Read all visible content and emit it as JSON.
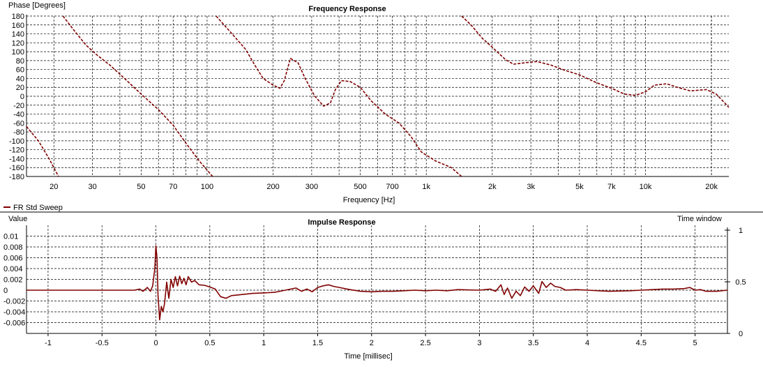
{
  "chart_data": [
    {
      "type": "line",
      "title": "Frequency Response",
      "xlabel": "Frequency [Hz]",
      "ylabel": "Phase [Degrees]",
      "xscale": "log",
      "xlim": [
        15,
        24000
      ],
      "ylim": [
        -180,
        180
      ],
      "grid": true,
      "legend": "bottom-left",
      "yticks": [
        180,
        160,
        140,
        120,
        100,
        80,
        60,
        40,
        20,
        0,
        -20,
        -40,
        -60,
        -80,
        -100,
        -120,
        -140,
        -160,
        -180
      ],
      "ytick_labels": [
        "180",
        "160",
        "140",
        "120",
        "100",
        "80",
        "60",
        "40",
        "20",
        "0",
        "-20",
        "-40",
        "-60",
        "-80",
        "-100",
        "-120",
        "-140",
        "-160",
        "-180"
      ],
      "xticks": [
        20,
        30,
        50,
        70,
        100,
        200,
        300,
        500,
        700,
        1000,
        2000,
        3000,
        5000,
        7000,
        10000,
        20000
      ],
      "xtick_labels": [
        "20",
        "30",
        "50",
        "70",
        "100",
        "200",
        "300",
        "500",
        "700",
        "1k",
        "2k",
        "3k",
        "5k",
        "7k",
        "10k",
        "20k"
      ],
      "series": [
        {
          "name": "FR Std Sweep",
          "color": "#800000",
          "style": "dashed",
          "segments": [
            [
              [
                15,
                -68
              ],
              [
                17,
                -100
              ],
              [
                19,
                -140
              ],
              [
                21,
                -180
              ]
            ],
            [
              [
                22,
                180
              ],
              [
                25,
                145
              ],
              [
                28,
                115
              ],
              [
                31,
                95
              ],
              [
                36,
                70
              ],
              [
                42,
                40
              ],
              [
                50,
                5
              ],
              [
                60,
                -30
              ],
              [
                70,
                -65
              ],
              [
                80,
                -105
              ],
              [
                92,
                -145
              ],
              [
                106,
                -180
              ]
            ],
            [
              [
                110,
                180
              ],
              [
                130,
                140
              ],
              [
                150,
                105
              ],
              [
                165,
                70
              ],
              [
                180,
                40
              ],
              [
                200,
                25
              ],
              [
                215,
                18
              ],
              [
                225,
                35
              ],
              [
                240,
                85
              ],
              [
                260,
                75
              ],
              [
                280,
                40
              ],
              [
                310,
                0
              ],
              [
                340,
                -22
              ],
              [
                365,
                -15
              ],
              [
                385,
                15
              ],
              [
                410,
                35
              ],
              [
                450,
                33
              ],
              [
                500,
                20
              ],
              [
                560,
                -10
              ],
              [
                650,
                -40
              ],
              [
                750,
                -60
              ],
              [
                850,
                -90
              ],
              [
                950,
                -125
              ],
              [
                1100,
                -145
              ],
              [
                1300,
                -160
              ],
              [
                1450,
                -180
              ]
            ],
            [
              [
                1450,
                180
              ],
              [
                1600,
                160
              ],
              [
                1800,
                130
              ],
              [
                2000,
                110
              ],
              [
                2300,
                82
              ],
              [
                2500,
                72
              ],
              [
                2800,
                75
              ],
              [
                3200,
                78
              ],
              [
                3700,
                70
              ],
              [
                4300,
                58
              ],
              [
                5000,
                48
              ],
              [
                6000,
                30
              ],
              [
                7000,
                18
              ],
              [
                8000,
                5
              ],
              [
                9000,
                2
              ],
              [
                10000,
                10
              ],
              [
                11000,
                25
              ],
              [
                12500,
                28
              ],
              [
                14000,
                20
              ],
              [
                16000,
                12
              ],
              [
                19000,
                15
              ],
              [
                21000,
                5
              ],
              [
                23000,
                -15
              ],
              [
                24000,
                -25
              ]
            ]
          ]
        }
      ]
    },
    {
      "type": "line",
      "title": "Impulse Response",
      "xlabel": "Time [millisec]",
      "ylabel": "Value",
      "y2label": "Time window",
      "xlim": [
        -1.2,
        5.3
      ],
      "ylim": [
        -0.008,
        0.012
      ],
      "grid": true,
      "xticks": [
        -1,
        -0.5,
        0,
        0.5,
        1,
        1.5,
        2,
        2.5,
        3,
        3.5,
        4,
        4.5,
        5
      ],
      "xtick_labels": [
        "-1",
        "-0.5",
        "0",
        "0.5",
        "1",
        "1.5",
        "2",
        "2.5",
        "3",
        "3.5",
        "4",
        "4.5",
        "5"
      ],
      "yticks": [
        0.01,
        0.008,
        0.006,
        0.004,
        0.002,
        0,
        -0.002,
        -0.004,
        -0.006
      ],
      "ytick_labels": [
        "0.01",
        "0.008",
        "0.006",
        "0.004",
        "0.002",
        "0",
        "-0.002",
        "-0.004",
        "-0.006"
      ],
      "y2lim": [
        0,
        1
      ],
      "y2ticks": [
        1,
        0.5,
        0
      ],
      "y2tick_labels": [
        "1",
        "0.5",
        "0"
      ],
      "series": [
        {
          "name": "FR Std Sweep",
          "color": "#800000",
          "style": "solid",
          "points": [
            [
              -1.2,
              0
            ],
            [
              -0.2,
              0
            ],
            [
              -0.15,
              0.0002
            ],
            [
              -0.12,
              -0.0002
            ],
            [
              -0.08,
              0.0005
            ],
            [
              -0.05,
              -0.0002
            ],
            [
              -0.03,
              0.0008
            ],
            [
              -0.01,
              0.004
            ],
            [
              0.0,
              0.0082
            ],
            [
              0.01,
              0.006
            ],
            [
              0.02,
              -0.001
            ],
            [
              0.035,
              -0.0055
            ],
            [
              0.05,
              -0.003
            ],
            [
              0.065,
              -0.004
            ],
            [
              0.08,
              -0.0025
            ],
            [
              0.1,
              0.0015
            ],
            [
              0.12,
              -0.0015
            ],
            [
              0.14,
              0.002
            ],
            [
              0.16,
              0.0005
            ],
            [
              0.18,
              0.0025
            ],
            [
              0.2,
              0.0008
            ],
            [
              0.22,
              0.0026
            ],
            [
              0.24,
              0.0012
            ],
            [
              0.26,
              0.0022
            ],
            [
              0.28,
              0.001
            ],
            [
              0.3,
              0.0025
            ],
            [
              0.33,
              0.0015
            ],
            [
              0.36,
              0.0018
            ],
            [
              0.4,
              0.001
            ],
            [
              0.45,
              0.0009
            ],
            [
              0.5,
              0.0006
            ],
            [
              0.55,
              0.0002
            ],
            [
              0.6,
              -0.0012
            ],
            [
              0.65,
              -0.0015
            ],
            [
              0.7,
              -0.001
            ],
            [
              0.8,
              -0.0008
            ],
            [
              0.9,
              -0.0006
            ],
            [
              1.0,
              -0.0005
            ],
            [
              1.1,
              -0.0004
            ],
            [
              1.2,
              0.0
            ],
            [
              1.3,
              0.0004
            ],
            [
              1.35,
              -0.0002
            ],
            [
              1.4,
              0.0002
            ],
            [
              1.45,
              -0.0003
            ],
            [
              1.5,
              0.0005
            ],
            [
              1.55,
              0.0008
            ],
            [
              1.6,
              0.001
            ],
            [
              1.65,
              0.0007
            ],
            [
              1.7,
              0.0005
            ],
            [
              1.8,
              0.0001
            ],
            [
              1.9,
              -0.0002
            ],
            [
              2.0,
              -0.0003
            ],
            [
              2.1,
              -0.0002
            ],
            [
              2.2,
              -0.0002
            ],
            [
              2.3,
              -0.0001
            ],
            [
              2.4,
              0.0
            ],
            [
              2.5,
              -0.0001
            ],
            [
              2.6,
              0.0
            ],
            [
              2.7,
              -0.0001
            ],
            [
              2.8,
              0.0001
            ],
            [
              3.0,
              0.0
            ],
            [
              3.1,
              0.0002
            ],
            [
              3.15,
              -0.0002
            ],
            [
              3.2,
              0.001
            ],
            [
              3.23,
              -0.0008
            ],
            [
              3.26,
              0.0004
            ],
            [
              3.3,
              -0.0015
            ],
            [
              3.34,
              -0.0002
            ],
            [
              3.38,
              -0.001
            ],
            [
              3.42,
              0.0006
            ],
            [
              3.46,
              -0.0002
            ],
            [
              3.5,
              0.0008
            ],
            [
              3.55,
              -0.0006
            ],
            [
              3.58,
              0.0016
            ],
            [
              3.62,
              0.0005
            ],
            [
              3.66,
              0.0013
            ],
            [
              3.7,
              0.0007
            ],
            [
              3.75,
              0.0005
            ],
            [
              3.8,
              0.0
            ],
            [
              3.9,
              0.0001
            ],
            [
              4.0,
              0.0
            ],
            [
              4.2,
              -0.0002
            ],
            [
              4.4,
              -0.0001
            ],
            [
              4.5,
              0.0
            ],
            [
              4.6,
              0.0001
            ],
            [
              4.7,
              0.0002
            ],
            [
              4.8,
              0.0002
            ],
            [
              4.9,
              0.0003
            ],
            [
              4.95,
              0.0005
            ],
            [
              5.0,
              0.0
            ],
            [
              5.05,
              0.0001
            ],
            [
              5.1,
              -0.0002
            ],
            [
              5.2,
              -0.0002
            ],
            [
              5.3,
              0.0
            ]
          ]
        }
      ]
    }
  ]
}
